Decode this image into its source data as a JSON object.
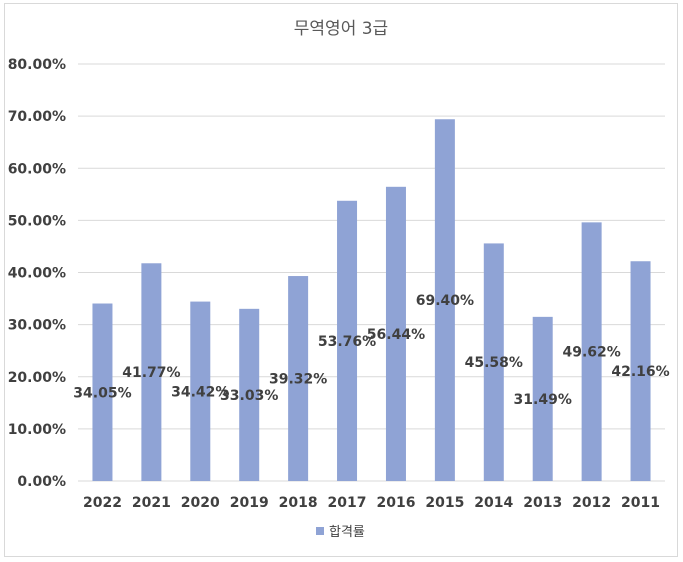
{
  "chart_data": {
    "type": "bar",
    "title": "무역영어 3급",
    "categories": [
      "2022",
      "2021",
      "2020",
      "2019",
      "2018",
      "2017",
      "2016",
      "2015",
      "2014",
      "2013",
      "2012",
      "2011"
    ],
    "series": [
      {
        "name": "합격률",
        "values": [
          34.05,
          41.77,
          34.42,
          33.03,
          39.32,
          53.76,
          56.44,
          69.4,
          45.58,
          31.49,
          49.62,
          42.16
        ],
        "labels": [
          "34.05%",
          "41.77%",
          "34.42%",
          "33.03%",
          "39.32%",
          "53.76%",
          "56.44%",
          "69.40%",
          "45.58%",
          "31.49%",
          "49.62%",
          "42.16%"
        ]
      }
    ],
    "ylim": [
      0,
      80
    ],
    "yticks": [
      "0.00%",
      "10.00%",
      "20.00%",
      "30.00%",
      "40.00%",
      "50.00%",
      "60.00%",
      "70.00%",
      "80.00%"
    ],
    "grid": true,
    "legend": "bottom",
    "bar_color": "#8fa3d5"
  }
}
